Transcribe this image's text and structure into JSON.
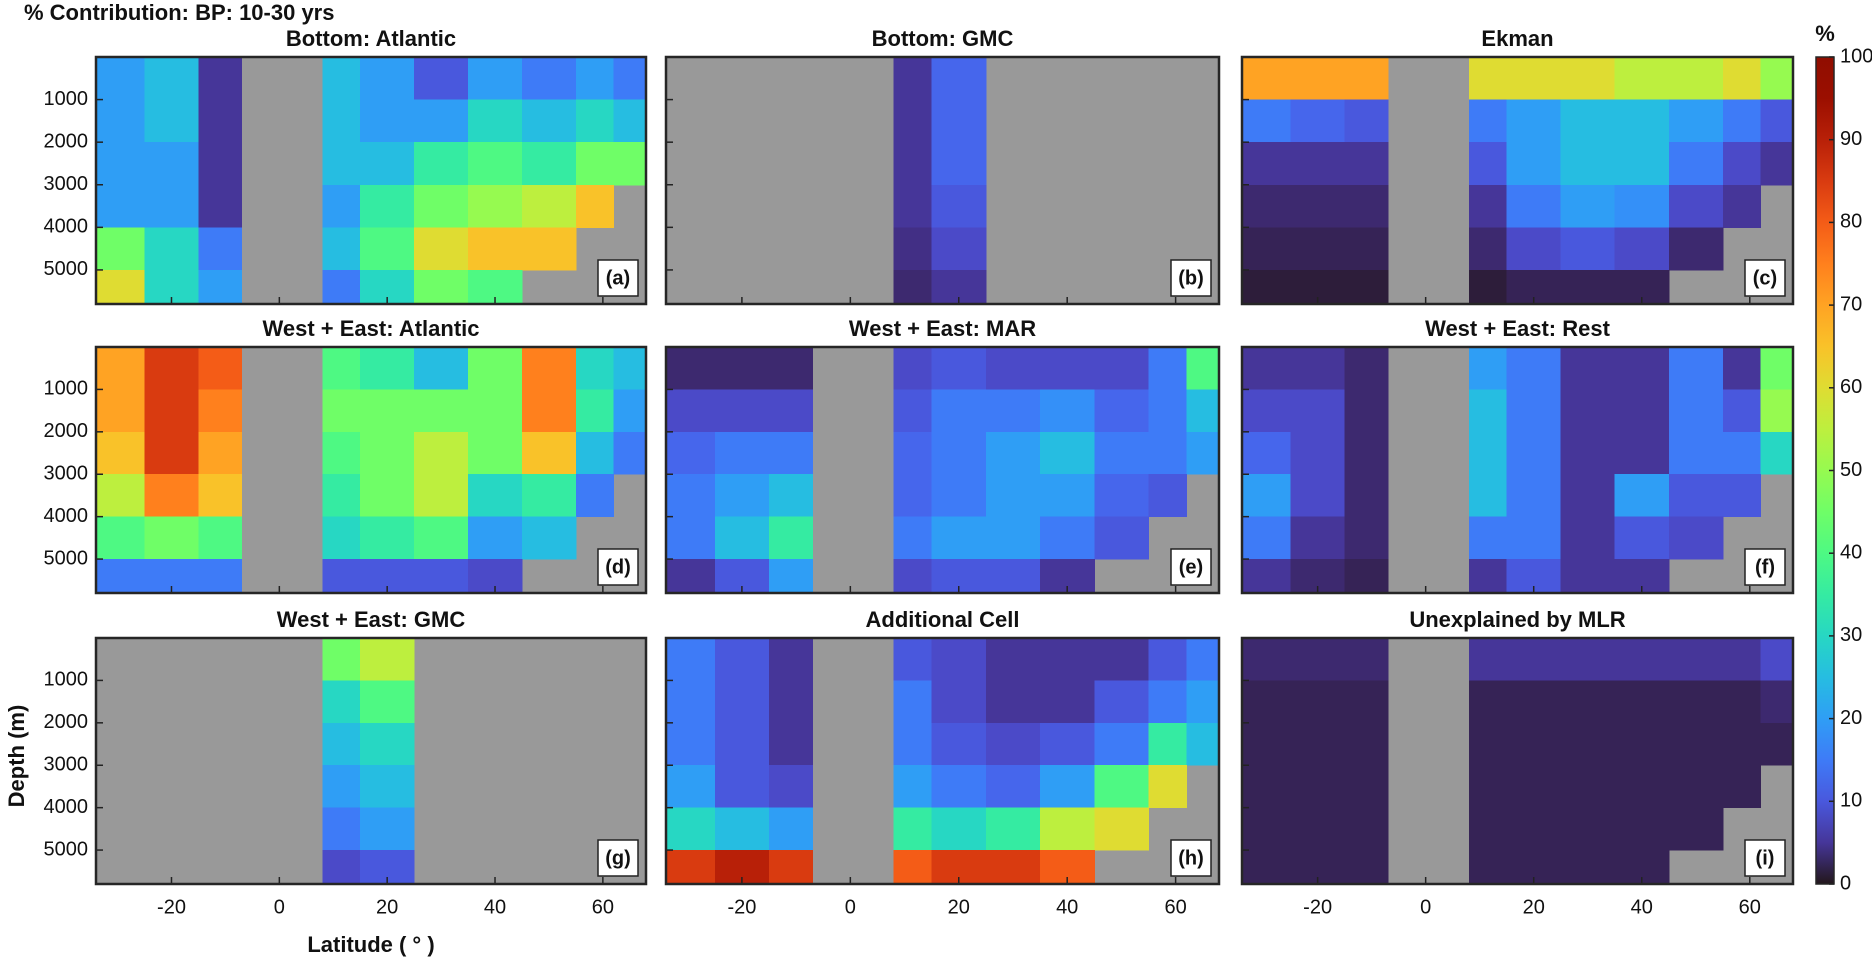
{
  "chart_data": {
    "type": "heatmap",
    "title": "% Contribution: BP: 10-30 yrs",
    "xlabel": "Latitude ( ° )",
    "ylabel": "Depth (m)",
    "xlim": [
      -34,
      68
    ],
    "ylim": [
      0,
      5800
    ],
    "xticks": [
      -20,
      0,
      20,
      40,
      60
    ],
    "yticks": [
      1000,
      2000,
      3000,
      4000,
      5000
    ],
    "x_edges": [
      -34,
      -25,
      -15,
      -7,
      8,
      15,
      25,
      35,
      45,
      55,
      62,
      68
    ],
    "y_edges": [
      0,
      1000,
      2000,
      3000,
      4000,
      5000,
      5800
    ],
    "colorbar": {
      "label": "%",
      "lim": [
        0,
        100
      ],
      "ticks": [
        0,
        10,
        20,
        30,
        40,
        50,
        60,
        70,
        80,
        90,
        100
      ]
    },
    "panels": [
      {
        "title": "Bottom: Atlantic",
        "tag": "(a)",
        "z": [
          [
            20,
            25,
            5,
            null,
            25,
            20,
            10,
            20,
            15,
            20,
            15
          ],
          [
            20,
            25,
            5,
            null,
            25,
            20,
            20,
            30,
            25,
            30,
            25
          ],
          [
            20,
            20,
            5,
            null,
            25,
            25,
            35,
            40,
            35,
            45,
            45
          ],
          [
            20,
            20,
            5,
            null,
            20,
            35,
            45,
            50,
            55,
            65,
            null
          ],
          [
            45,
            30,
            15,
            null,
            25,
            40,
            60,
            65,
            65,
            null,
            null
          ],
          [
            60,
            30,
            20,
            null,
            15,
            30,
            45,
            40,
            null,
            null,
            null
          ]
        ]
      },
      {
        "title": "Bottom: GMC",
        "tag": "(b)",
        "z": [
          [
            null,
            null,
            null,
            null,
            5,
            12,
            null,
            null,
            null,
            null,
            null
          ],
          [
            null,
            null,
            null,
            null,
            5,
            12,
            null,
            null,
            null,
            null,
            null
          ],
          [
            null,
            null,
            null,
            null,
            5,
            12,
            null,
            null,
            null,
            null,
            null
          ],
          [
            null,
            null,
            null,
            null,
            5,
            10,
            null,
            null,
            null,
            null,
            null
          ],
          [
            null,
            null,
            null,
            null,
            4,
            8,
            null,
            null,
            null,
            null,
            null
          ],
          [
            null,
            null,
            null,
            null,
            3,
            5,
            null,
            null,
            null,
            null,
            null
          ]
        ]
      },
      {
        "title": "Ekman",
        "tag": "(c)",
        "z": [
          [
            70,
            70,
            70,
            null,
            60,
            60,
            60,
            55,
            55,
            60,
            50
          ],
          [
            15,
            12,
            10,
            null,
            15,
            20,
            25,
            25,
            20,
            15,
            10
          ],
          [
            5,
            5,
            5,
            null,
            10,
            20,
            25,
            25,
            15,
            8,
            5
          ],
          [
            3,
            3,
            3,
            null,
            5,
            15,
            20,
            18,
            8,
            5,
            null
          ],
          [
            2,
            2,
            2,
            null,
            3,
            8,
            10,
            8,
            3,
            null,
            null
          ],
          [
            1,
            1,
            1,
            null,
            1,
            2,
            2,
            2,
            null,
            null,
            null
          ]
        ]
      },
      {
        "title": "West + East: Atlantic",
        "tag": "(d)",
        "z": [
          [
            70,
            85,
            80,
            null,
            40,
            35,
            25,
            45,
            75,
            30,
            25
          ],
          [
            70,
            85,
            75,
            null,
            45,
            45,
            45,
            45,
            75,
            35,
            20
          ],
          [
            65,
            85,
            70,
            null,
            40,
            45,
            55,
            45,
            65,
            25,
            15
          ],
          [
            55,
            75,
            65,
            null,
            35,
            45,
            55,
            30,
            35,
            15,
            null
          ],
          [
            40,
            45,
            40,
            null,
            30,
            35,
            40,
            20,
            25,
            null,
            null
          ],
          [
            15,
            15,
            15,
            null,
            10,
            10,
            10,
            8,
            null,
            null,
            null
          ]
        ]
      },
      {
        "title": "West + East: MAR",
        "tag": "(e)",
        "z": [
          [
            3,
            3,
            3,
            null,
            8,
            10,
            8,
            8,
            8,
            15,
            40
          ],
          [
            8,
            8,
            8,
            null,
            10,
            15,
            15,
            18,
            12,
            15,
            25
          ],
          [
            12,
            15,
            15,
            null,
            12,
            15,
            20,
            25,
            15,
            15,
            20
          ],
          [
            15,
            20,
            25,
            null,
            12,
            15,
            20,
            20,
            12,
            10,
            null
          ],
          [
            15,
            25,
            35,
            null,
            15,
            20,
            20,
            15,
            10,
            null,
            null
          ],
          [
            5,
            10,
            20,
            null,
            8,
            10,
            10,
            5,
            null,
            null,
            null
          ]
        ]
      },
      {
        "title": "West + East: Rest",
        "tag": "(f)",
        "z": [
          [
            5,
            5,
            3,
            null,
            20,
            15,
            5,
            5,
            15,
            5,
            45
          ],
          [
            8,
            8,
            3,
            null,
            25,
            15,
            5,
            5,
            15,
            10,
            50
          ],
          [
            12,
            8,
            3,
            null,
            25,
            15,
            5,
            5,
            15,
            15,
            30
          ],
          [
            20,
            8,
            3,
            null,
            25,
            15,
            5,
            20,
            10,
            10,
            null
          ],
          [
            15,
            5,
            3,
            null,
            15,
            15,
            5,
            10,
            8,
            null,
            null
          ],
          [
            5,
            3,
            2,
            null,
            5,
            10,
            5,
            5,
            null,
            null,
            null
          ]
        ]
      },
      {
        "title": "West + East: GMC",
        "tag": "(g)",
        "z": [
          [
            null,
            null,
            null,
            null,
            45,
            55,
            null,
            null,
            null,
            null,
            null
          ],
          [
            null,
            null,
            null,
            null,
            30,
            40,
            null,
            null,
            null,
            null,
            null
          ],
          [
            null,
            null,
            null,
            null,
            25,
            30,
            null,
            null,
            null,
            null,
            null
          ],
          [
            null,
            null,
            null,
            null,
            20,
            25,
            null,
            null,
            null,
            null,
            null
          ],
          [
            null,
            null,
            null,
            null,
            15,
            20,
            null,
            null,
            null,
            null,
            null
          ],
          [
            null,
            null,
            null,
            null,
            8,
            10,
            null,
            null,
            null,
            null,
            null
          ]
        ]
      },
      {
        "title": "Additional Cell",
        "tag": "(h)",
        "z": [
          [
            15,
            10,
            5,
            null,
            10,
            8,
            5,
            5,
            5,
            10,
            15
          ],
          [
            15,
            10,
            5,
            null,
            15,
            8,
            5,
            5,
            10,
            15,
            20
          ],
          [
            15,
            10,
            5,
            null,
            15,
            10,
            8,
            10,
            15,
            35,
            25
          ],
          [
            20,
            10,
            8,
            null,
            20,
            15,
            12,
            20,
            40,
            60,
            null
          ],
          [
            30,
            25,
            20,
            null,
            35,
            30,
            35,
            55,
            60,
            null,
            null
          ],
          [
            85,
            90,
            85,
            null,
            80,
            85,
            85,
            80,
            null,
            null,
            null
          ]
        ]
      },
      {
        "title": "Unexplained by MLR",
        "tag": "(i)",
        "z": [
          [
            3,
            3,
            3,
            null,
            5,
            5,
            5,
            5,
            5,
            5,
            8
          ],
          [
            2,
            2,
            2,
            null,
            2,
            2,
            2,
            2,
            2,
            2,
            3
          ],
          [
            2,
            2,
            2,
            null,
            2,
            2,
            2,
            2,
            2,
            2,
            2
          ],
          [
            2,
            2,
            2,
            null,
            2,
            2,
            2,
            2,
            2,
            2,
            null
          ],
          [
            2,
            2,
            2,
            null,
            2,
            2,
            2,
            2,
            2,
            null,
            null
          ],
          [
            2,
            2,
            2,
            null,
            2,
            2,
            2,
            2,
            null,
            null,
            null
          ]
        ]
      }
    ]
  }
}
